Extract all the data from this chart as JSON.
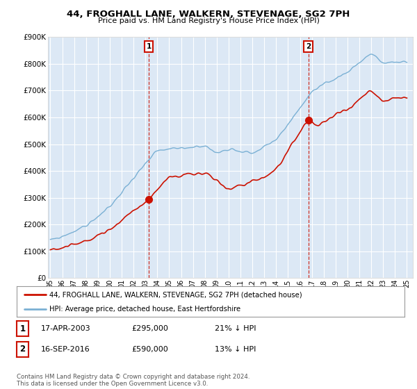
{
  "title": "44, FROGHALL LANE, WALKERN, STEVENAGE, SG2 7PH",
  "subtitle": "Price paid vs. HM Land Registry's House Price Index (HPI)",
  "ylim": [
    0,
    900000
  ],
  "yticks": [
    0,
    100000,
    200000,
    300000,
    400000,
    500000,
    600000,
    700000,
    800000,
    900000
  ],
  "ytick_labels": [
    "£0",
    "£100K",
    "£200K",
    "£300K",
    "£400K",
    "£500K",
    "£600K",
    "£700K",
    "£800K",
    "£900K"
  ],
  "background_color": "#ffffff",
  "plot_bg_color": "#dce8f5",
  "grid_color": "#ffffff",
  "hpi_color": "#7ab0d4",
  "price_color": "#cc1100",
  "marker1_date_x": 2003.29,
  "marker1_price": 295000,
  "marker2_date_x": 2016.71,
  "marker2_price": 590000,
  "legend_label1": "44, FROGHALL LANE, WALKERN, STEVENAGE, SG2 7PH (detached house)",
  "legend_label2": "HPI: Average price, detached house, East Hertfordshire",
  "table_row1": [
    "1",
    "17-APR-2003",
    "£295,000",
    "21% ↓ HPI"
  ],
  "table_row2": [
    "2",
    "16-SEP-2016",
    "£590,000",
    "13% ↓ HPI"
  ],
  "footer": "Contains HM Land Registry data © Crown copyright and database right 2024.\nThis data is licensed under the Open Government Licence v3.0.",
  "xmin": 1994.8,
  "xmax": 2025.5
}
